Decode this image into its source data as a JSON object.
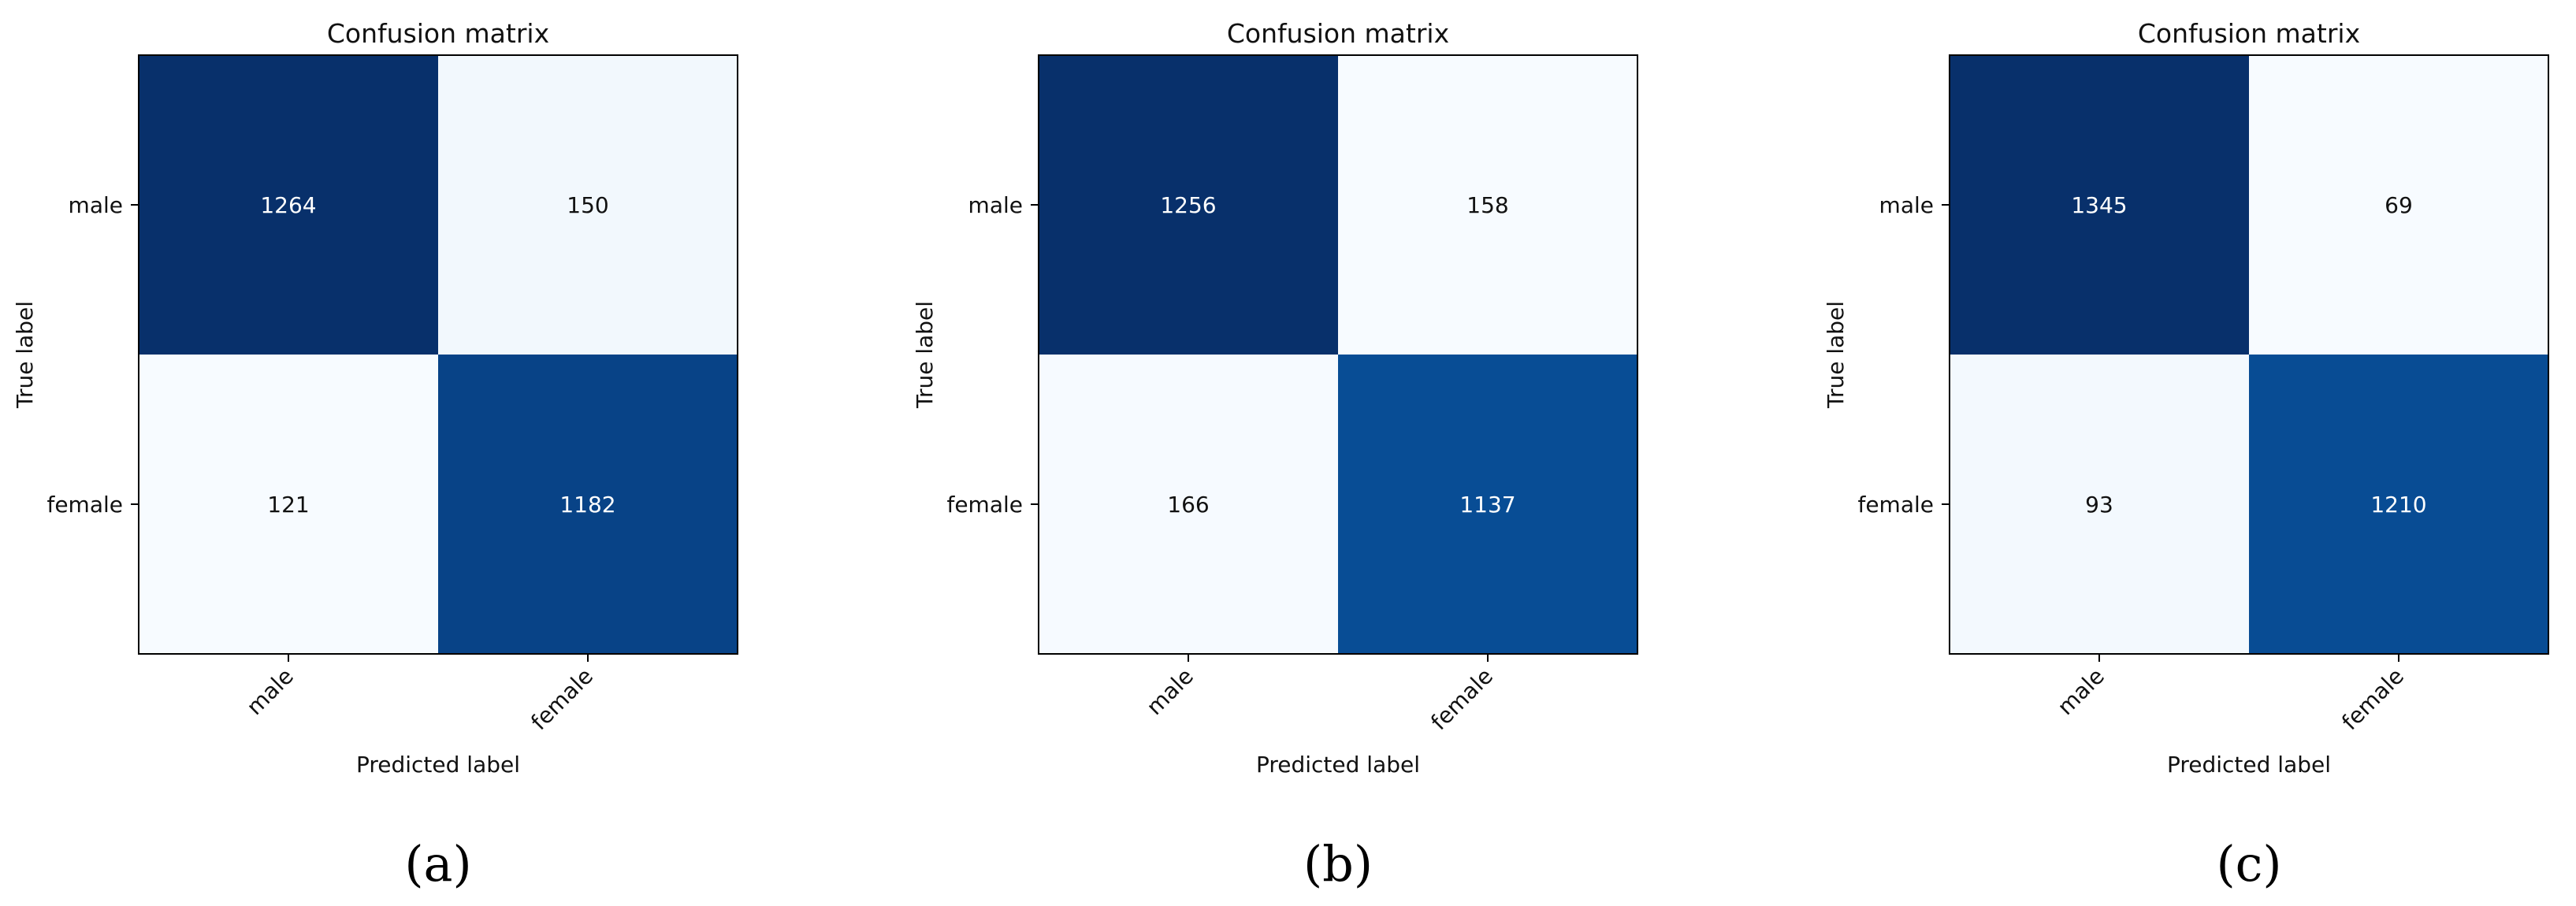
{
  "chart_data": [
    {
      "type": "heatmap",
      "title": "Confusion matrix",
      "xlabel": "Predicted label",
      "ylabel": "True label",
      "x_categories": [
        "male",
        "female"
      ],
      "y_categories": [
        "male",
        "female"
      ],
      "values": [
        [
          1264,
          150
        ],
        [
          121,
          1182
        ]
      ],
      "colormap": "Blues",
      "caption": "(a)",
      "caption_label": "a"
    },
    {
      "type": "heatmap",
      "title": "Confusion matrix",
      "xlabel": "Predicted label",
      "ylabel": "True label",
      "x_categories": [
        "male",
        "female"
      ],
      "y_categories": [
        "male",
        "female"
      ],
      "values": [
        [
          1256,
          158
        ],
        [
          166,
          1137
        ]
      ],
      "colormap": "Blues",
      "caption": "(b)",
      "caption_label": "b"
    },
    {
      "type": "heatmap",
      "title": "Confusion matrix",
      "xlabel": "Predicted label",
      "ylabel": "True label",
      "x_categories": [
        "male",
        "female"
      ],
      "y_categories": [
        "male",
        "female"
      ],
      "values": [
        [
          1345,
          69
        ],
        [
          93,
          1210
        ]
      ],
      "colormap": "Blues",
      "caption": "(c)",
      "caption_label": "c"
    }
  ]
}
